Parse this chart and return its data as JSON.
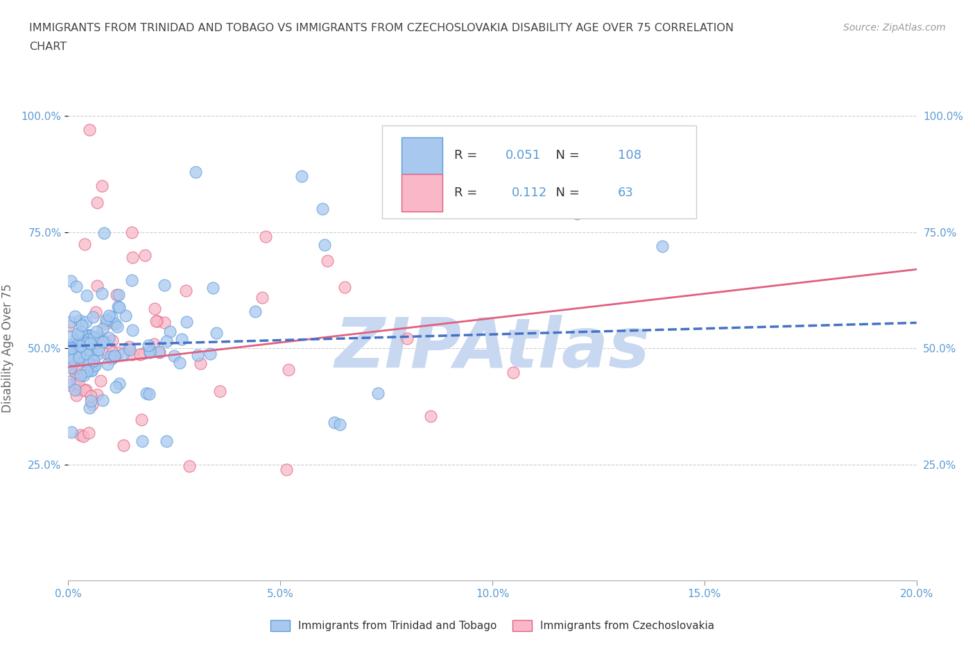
{
  "title_line1": "IMMIGRANTS FROM TRINIDAD AND TOBAGO VS IMMIGRANTS FROM CZECHOSLOVAKIA DISABILITY AGE OVER 75 CORRELATION",
  "title_line2": "CHART",
  "source_text": "Source: ZipAtlas.com",
  "ylabel": "Disability Age Over 75",
  "xlim": [
    0.0,
    0.2
  ],
  "ylim": [
    0.0,
    1.0
  ],
  "xticks": [
    0.0,
    0.05,
    0.1,
    0.15,
    0.2
  ],
  "xtick_labels": [
    "0.0%",
    "5.0%",
    "10.0%",
    "15.0%",
    "20.0%"
  ],
  "yticks": [
    0.25,
    0.5,
    0.75,
    1.0
  ],
  "ytick_labels": [
    "25.0%",
    "50.0%",
    "75.0%",
    "100.0%"
  ],
  "blue_fill": "#A8C8F0",
  "blue_edge": "#5B9BD5",
  "pink_fill": "#F8B8C8",
  "pink_edge": "#E06080",
  "blue_line_color": "#4472C4",
  "pink_line_color": "#E06080",
  "watermark_color": "#C8D8F0",
  "legend_R1": "0.051",
  "legend_N1": "108",
  "legend_R2": "0.112",
  "legend_N2": "63",
  "blue_intercept": 0.505,
  "blue_slope": 0.25,
  "pink_intercept": 0.46,
  "pink_slope": 1.05,
  "background_color": "#ffffff",
  "grid_color": "#CCCCCC",
  "title_color": "#444444",
  "axis_label_color": "#666666",
  "tick_label_color": "#5B9BD5",
  "value_color": "#5B9BD5",
  "label_color": "#333333",
  "seed_blue": 7,
  "seed_pink": 13,
  "N_blue": 108,
  "N_pink": 63
}
